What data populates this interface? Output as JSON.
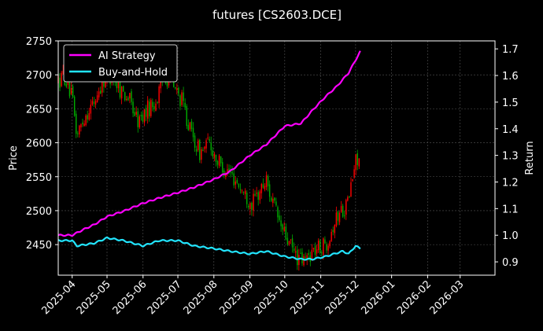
{
  "chart_data": {
    "type": "line",
    "title": "futures [CS2603.DCE]",
    "xlabel": "",
    "ylabel": "Price",
    "ylabel_right": "Return",
    "background": "#000000",
    "grid": true,
    "legend_position": "top-left",
    "x_ticks": [
      "2025-04",
      "2025-05",
      "2025-06",
      "2025-07",
      "2025-08",
      "2025-09",
      "2025-10",
      "2025-11",
      "2025-12",
      "2026-01",
      "2026-02",
      "2026-03"
    ],
    "y_left": {
      "lim": [
        2405,
        2750
      ],
      "ticks": [
        2450,
        2500,
        2550,
        2600,
        2650,
        2700,
        2750
      ]
    },
    "y_right": {
      "lim": [
        0.85,
        1.73
      ],
      "ticks": [
        0.9,
        1.0,
        1.1,
        1.2,
        1.3,
        1.4,
        1.5,
        1.6,
        1.7
      ]
    },
    "x_range": [
      "2025-03-20",
      "2026-03-31"
    ],
    "series": [
      {
        "name": "AI Strategy",
        "color": "#ff00ff",
        "axis": "right",
        "points": [
          [
            "2025-03-20",
            1.0
          ],
          [
            "2025-04-01",
            1.0
          ],
          [
            "2025-04-10",
            1.02
          ],
          [
            "2025-04-20",
            1.04
          ],
          [
            "2025-05-01",
            1.07
          ],
          [
            "2025-05-15",
            1.09
          ],
          [
            "2025-06-01",
            1.12
          ],
          [
            "2025-06-15",
            1.14
          ],
          [
            "2025-07-01",
            1.16
          ],
          [
            "2025-07-15",
            1.18
          ],
          [
            "2025-08-01",
            1.21
          ],
          [
            "2025-08-15",
            1.24
          ],
          [
            "2025-09-01",
            1.3
          ],
          [
            "2025-09-15",
            1.34
          ],
          [
            "2025-10-01",
            1.41
          ],
          [
            "2025-10-15",
            1.42
          ],
          [
            "2025-10-25",
            1.47
          ],
          [
            "2025-11-05",
            1.52
          ],
          [
            "2025-11-15",
            1.56
          ],
          [
            "2025-11-25",
            1.61
          ],
          [
            "2025-12-05",
            1.69
          ]
        ]
      },
      {
        "name": "Buy-and-Hold",
        "color": "#22e5ff",
        "axis": "right",
        "points": [
          [
            "2025-03-20",
            0.98
          ],
          [
            "2025-04-01",
            0.98
          ],
          [
            "2025-04-05",
            0.96
          ],
          [
            "2025-04-20",
            0.97
          ],
          [
            "2025-05-01",
            0.99
          ],
          [
            "2025-05-15",
            0.98
          ],
          [
            "2025-06-01",
            0.96
          ],
          [
            "2025-06-15",
            0.98
          ],
          [
            "2025-07-01",
            0.98
          ],
          [
            "2025-07-15",
            0.96
          ],
          [
            "2025-08-01",
            0.95
          ],
          [
            "2025-08-15",
            0.94
          ],
          [
            "2025-09-01",
            0.93
          ],
          [
            "2025-09-15",
            0.94
          ],
          [
            "2025-10-01",
            0.92
          ],
          [
            "2025-10-15",
            0.91
          ],
          [
            "2025-10-25",
            0.91
          ],
          [
            "2025-11-05",
            0.92
          ],
          [
            "2025-11-20",
            0.94
          ],
          [
            "2025-11-25",
            0.93
          ],
          [
            "2025-12-01",
            0.96
          ],
          [
            "2025-12-05",
            0.95
          ]
        ]
      }
    ],
    "candles": {
      "axis": "left",
      "up_color": "#ff0000",
      "down_color": "#00aa00",
      "price_path": [
        [
          "2025-03-20",
          2690
        ],
        [
          "2025-03-25",
          2700
        ],
        [
          "2025-04-01",
          2665
        ],
        [
          "2025-04-05",
          2610
        ],
        [
          "2025-04-12",
          2640
        ],
        [
          "2025-04-20",
          2660
        ],
        [
          "2025-04-27",
          2690
        ],
        [
          "2025-05-05",
          2700
        ],
        [
          "2025-05-12",
          2680
        ],
        [
          "2025-05-20",
          2665
        ],
        [
          "2025-05-28",
          2630
        ],
        [
          "2025-06-05",
          2650
        ],
        [
          "2025-06-12",
          2660
        ],
        [
          "2025-06-20",
          2700
        ],
        [
          "2025-06-28",
          2680
        ],
        [
          "2025-07-05",
          2660
        ],
        [
          "2025-07-12",
          2615
        ],
        [
          "2025-07-20",
          2585
        ],
        [
          "2025-07-28",
          2600
        ],
        [
          "2025-08-05",
          2570
        ],
        [
          "2025-08-12",
          2560
        ],
        [
          "2025-08-20",
          2545
        ],
        [
          "2025-08-27",
          2525
        ],
        [
          "2025-09-03",
          2510
        ],
        [
          "2025-09-10",
          2530
        ],
        [
          "2025-09-15",
          2545
        ],
        [
          "2025-09-22",
          2505
        ],
        [
          "2025-09-28",
          2475
        ],
        [
          "2025-10-05",
          2450
        ],
        [
          "2025-10-12",
          2430
        ],
        [
          "2025-10-18",
          2425
        ],
        [
          "2025-10-24",
          2440
        ],
        [
          "2025-10-30",
          2445
        ],
        [
          "2025-11-05",
          2450
        ],
        [
          "2025-11-12",
          2480
        ],
        [
          "2025-11-18",
          2500
        ],
        [
          "2025-11-24",
          2510
        ],
        [
          "2025-11-28",
          2545
        ],
        [
          "2025-12-02",
          2580
        ],
        [
          "2025-12-05",
          2575
        ]
      ]
    }
  }
}
